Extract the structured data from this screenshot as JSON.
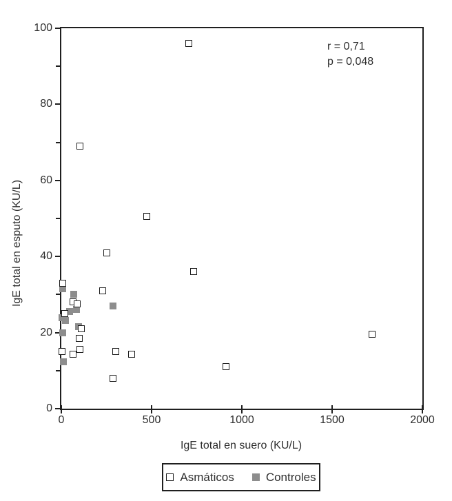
{
  "chart_data": {
    "type": "scatter",
    "title": "",
    "xlabel": "IgE total en suero (KU/L)",
    "ylabel": "IgE total en esputo (KU/L)",
    "xlim": [
      0,
      2000
    ],
    "ylim": [
      0,
      100
    ],
    "x_ticks": [
      0,
      500,
      1000,
      1500,
      2000
    ],
    "y_ticks": [
      0,
      20,
      40,
      60,
      80,
      100
    ],
    "y_minor_ticks": [
      10,
      30,
      50,
      70,
      90
    ],
    "grid": false,
    "legend_position": "bottom-center",
    "stats": {
      "r_label": "r = 0,71",
      "p_label": "p = 0,048"
    },
    "series": [
      {
        "key": "asmaticos",
        "name": "Asmáticos",
        "marker": "open-square",
        "fill": "#ffffff",
        "stroke": "#1f1f1f",
        "points": [
          [
            8,
            33
          ],
          [
            103,
            69
          ],
          [
            230,
            31
          ],
          [
            253,
            41
          ],
          [
            286,
            8
          ],
          [
            303,
            15
          ],
          [
            390,
            14.3
          ],
          [
            475,
            50.5
          ],
          [
            706,
            96
          ],
          [
            733,
            36
          ],
          [
            913,
            11
          ],
          [
            1722,
            19.5
          ],
          [
            66,
            28
          ],
          [
            88,
            27.5
          ],
          [
            18,
            25
          ],
          [
            110,
            21
          ],
          [
            100,
            18.5
          ],
          [
            3,
            15
          ],
          [
            66,
            14.4
          ],
          [
            104,
            15.6
          ]
        ]
      },
      {
        "key": "controles",
        "name": "Controles",
        "marker": "filled-square",
        "fill": "#8d8d8d",
        "stroke": "#8d8d8d",
        "points": [
          [
            8,
            31.5
          ],
          [
            70,
            30
          ],
          [
            85,
            26
          ],
          [
            45,
            25.5
          ],
          [
            5,
            24
          ],
          [
            22,
            23.2
          ],
          [
            97,
            21.6
          ],
          [
            6,
            20
          ],
          [
            10,
            12.3
          ],
          [
            285,
            27
          ]
        ]
      }
    ]
  }
}
